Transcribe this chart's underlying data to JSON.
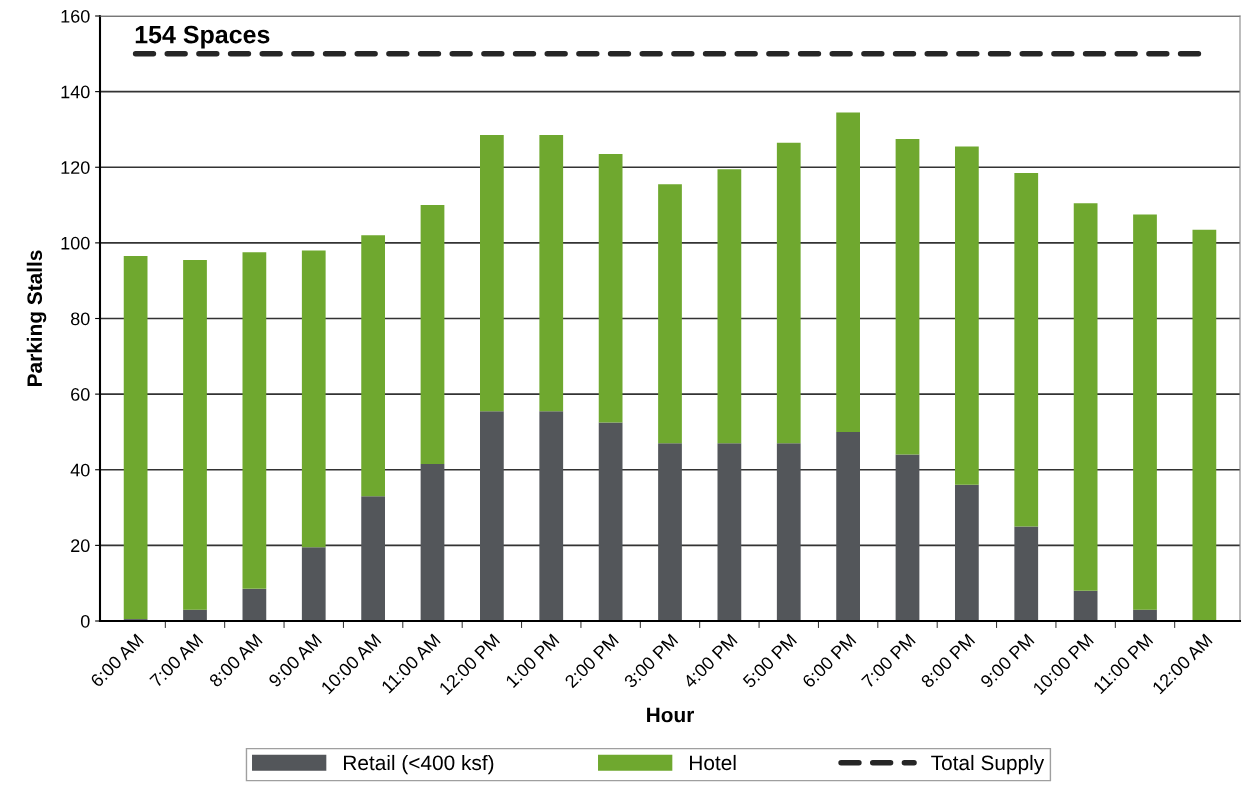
{
  "chart_data": {
    "type": "bar",
    "stacked": true,
    "xlabel": "Hour",
    "ylabel": "Parking Stalls",
    "categories": [
      "6:00 AM",
      "7:00 AM",
      "8:00 AM",
      "9:00 AM",
      "10:00 AM",
      "11:00 AM",
      "12:00 PM",
      "1:00 PM",
      "2:00 PM",
      "3:00 PM",
      "4:00 PM",
      "5:00 PM",
      "6:00 PM",
      "7:00 PM",
      "8:00 PM",
      "9:00 PM",
      "10:00 PM",
      "11:00 PM",
      "12:00 AM"
    ],
    "series": [
      {
        "name": "Retail (<400 ksf)",
        "color": "#53565a",
        "values": [
          0.5,
          3,
          8.5,
          19.5,
          33,
          41.5,
          55.5,
          55.5,
          52.5,
          47,
          47,
          47,
          50,
          44,
          36,
          25,
          8,
          3,
          0
        ]
      },
      {
        "name": "Hotel",
        "color": "#6fa82f",
        "values": [
          96,
          92.5,
          89,
          78.5,
          69,
          68.5,
          73,
          73,
          71,
          68.5,
          72.5,
          79.5,
          84.5,
          83.5,
          89.5,
          93.5,
          102.5,
          104.5,
          103.5
        ]
      },
      {
        "name": "Total Supply",
        "type": "line",
        "line_style": "dashed",
        "color": "#262626",
        "values": [
          150,
          150,
          150,
          150,
          150,
          150,
          150,
          150,
          150,
          150,
          150,
          150,
          150,
          150,
          150,
          150,
          150,
          150,
          150
        ]
      }
    ],
    "annotations": [
      "154 Spaces"
    ],
    "ylim": [
      0,
      160
    ],
    "yticks": [
      0,
      20,
      40,
      60,
      80,
      100,
      120,
      140,
      160
    ],
    "grid": "y",
    "legend": "bottom"
  }
}
